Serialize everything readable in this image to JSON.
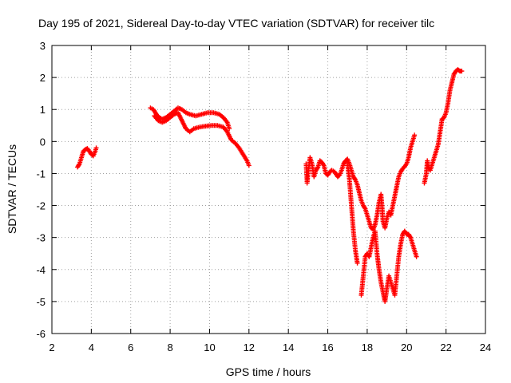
{
  "chart_data": {
    "type": "scatter",
    "title": "Day 195 of 2021, Sidereal Day-to-day VTEC variation (SDTVAR) for receiver tilc",
    "xlabel": "GPS time / hours",
    "ylabel": "SDTVAR / TECUs",
    "xlim": [
      2,
      24
    ],
    "ylim": [
      -6,
      3
    ],
    "xticks": [
      2,
      4,
      6,
      8,
      10,
      12,
      14,
      16,
      18,
      20,
      22,
      24
    ],
    "yticks": [
      -6,
      -5,
      -4,
      -3,
      -2,
      -1,
      0,
      1,
      2,
      3
    ],
    "grid": true,
    "marker": "+",
    "series": [
      {
        "name": "SDTVAR",
        "color": "#ff0000",
        "segments": [
          [
            [
              3.3,
              -0.8
            ],
            [
              3.4,
              -0.7
            ],
            [
              3.5,
              -0.5
            ],
            [
              3.6,
              -0.3
            ],
            [
              3.7,
              -0.25
            ],
            [
              3.8,
              -0.22
            ],
            [
              3.9,
              -0.3
            ],
            [
              4.0,
              -0.4
            ],
            [
              4.1,
              -0.45
            ],
            [
              4.2,
              -0.3
            ],
            [
              4.25,
              -0.2
            ]
          ],
          [
            [
              7.0,
              1.05
            ],
            [
              7.15,
              1.0
            ],
            [
              7.3,
              0.85
            ],
            [
              7.45,
              0.75
            ],
            [
              7.6,
              0.7
            ],
            [
              7.8,
              0.75
            ],
            [
              8.0,
              0.85
            ],
            [
              8.2,
              0.95
            ],
            [
              8.4,
              1.05
            ],
            [
              8.6,
              1.0
            ],
            [
              8.8,
              0.9
            ],
            [
              9.0,
              0.85
            ],
            [
              9.3,
              0.8
            ],
            [
              9.6,
              0.85
            ],
            [
              9.9,
              0.9
            ],
            [
              10.2,
              0.9
            ],
            [
              10.5,
              0.85
            ],
            [
              10.7,
              0.75
            ],
            [
              10.9,
              0.6
            ],
            [
              11.0,
              0.4
            ]
          ],
          [
            [
              7.2,
              0.8
            ],
            [
              7.4,
              0.65
            ],
            [
              7.6,
              0.6
            ],
            [
              7.8,
              0.65
            ],
            [
              8.0,
              0.75
            ],
            [
              8.2,
              0.85
            ],
            [
              8.4,
              0.9
            ],
            [
              8.6,
              0.65
            ],
            [
              8.8,
              0.4
            ],
            [
              9.0,
              0.3
            ],
            [
              9.2,
              0.4
            ],
            [
              9.5,
              0.45
            ],
            [
              9.8,
              0.48
            ],
            [
              10.1,
              0.5
            ],
            [
              10.4,
              0.5
            ],
            [
              10.7,
              0.45
            ],
            [
              10.9,
              0.3
            ],
            [
              11.1,
              0.05
            ],
            [
              11.3,
              -0.05
            ],
            [
              11.5,
              -0.2
            ],
            [
              11.7,
              -0.4
            ],
            [
              11.9,
              -0.6
            ],
            [
              12.0,
              -0.75
            ]
          ],
          [
            [
              14.9,
              -0.7
            ],
            [
              14.95,
              -1.3
            ],
            [
              15.0,
              -1.0
            ],
            [
              15.1,
              -0.5
            ],
            [
              15.2,
              -0.7
            ],
            [
              15.3,
              -1.1
            ],
            [
              15.4,
              -0.9
            ],
            [
              15.5,
              -0.8
            ],
            [
              15.6,
              -0.6
            ],
            [
              15.7,
              -0.65
            ],
            [
              15.8,
              -0.75
            ],
            [
              15.9,
              -1.0
            ],
            [
              16.0,
              -1.05
            ],
            [
              16.1,
              -0.95
            ],
            [
              16.2,
              -0.9
            ],
            [
              16.35,
              -0.95
            ],
            [
              16.5,
              -1.1
            ],
            [
              16.6,
              -1.05
            ],
            [
              16.7,
              -0.9
            ],
            [
              16.8,
              -0.7
            ],
            [
              16.9,
              -0.6
            ],
            [
              17.0,
              -0.55
            ],
            [
              17.1,
              -0.7
            ],
            [
              17.2,
              -0.9
            ],
            [
              17.3,
              -1.1
            ],
            [
              17.4,
              -1.2
            ],
            [
              17.5,
              -1.35
            ],
            [
              17.6,
              -1.6
            ],
            [
              17.7,
              -1.85
            ],
            [
              17.8,
              -2.0
            ],
            [
              17.9,
              -2.1
            ],
            [
              18.0,
              -2.3
            ],
            [
              18.1,
              -2.5
            ],
            [
              18.2,
              -2.7
            ],
            [
              18.3,
              -2.75
            ],
            [
              18.4,
              -2.6
            ],
            [
              18.5,
              -2.3
            ],
            [
              18.6,
              -1.9
            ],
            [
              18.7,
              -1.65
            ],
            [
              18.75,
              -2.0
            ],
            [
              18.8,
              -2.5
            ],
            [
              18.9,
              -2.7
            ],
            [
              19.0,
              -2.4
            ],
            [
              19.1,
              -2.2
            ],
            [
              19.2,
              -2.3
            ],
            [
              19.3,
              -2.0
            ],
            [
              19.4,
              -1.7
            ],
            [
              19.5,
              -1.4
            ],
            [
              19.6,
              -1.1
            ],
            [
              19.7,
              -0.95
            ],
            [
              19.8,
              -0.85
            ],
            [
              19.9,
              -0.78
            ],
            [
              20.0,
              -0.7
            ],
            [
              20.1,
              -0.5
            ],
            [
              20.2,
              -0.2
            ],
            [
              20.3,
              0.0
            ],
            [
              20.4,
              0.2
            ]
          ],
          [
            [
              17.0,
              -0.7
            ],
            [
              17.1,
              -1.2
            ],
            [
              17.2,
              -2.0
            ],
            [
              17.3,
              -2.8
            ],
            [
              17.4,
              -3.4
            ],
            [
              17.5,
              -3.8
            ]
          ],
          [
            [
              17.7,
              -4.8
            ],
            [
              17.8,
              -4.2
            ],
            [
              17.9,
              -3.6
            ],
            [
              18.0,
              -3.5
            ],
            [
              18.1,
              -3.6
            ],
            [
              18.2,
              -3.3
            ],
            [
              18.3,
              -3.0
            ],
            [
              18.4,
              -2.8
            ],
            [
              18.5,
              -3.5
            ],
            [
              18.6,
              -4.0
            ],
            [
              18.7,
              -4.4
            ],
            [
              18.8,
              -4.7
            ],
            [
              18.9,
              -5.0
            ],
            [
              19.0,
              -4.6
            ],
            [
              19.1,
              -4.2
            ],
            [
              19.2,
              -4.4
            ],
            [
              19.3,
              -4.6
            ],
            [
              19.4,
              -4.8
            ],
            [
              19.5,
              -4.2
            ],
            [
              19.6,
              -3.6
            ],
            [
              19.7,
              -3.2
            ],
            [
              19.8,
              -2.9
            ],
            [
              19.9,
              -2.8
            ],
            [
              20.0,
              -2.9
            ],
            [
              20.1,
              -2.9
            ],
            [
              20.2,
              -3.0
            ],
            [
              20.3,
              -3.2
            ],
            [
              20.4,
              -3.4
            ],
            [
              20.5,
              -3.6
            ]
          ],
          [
            [
              20.9,
              -1.3
            ],
            [
              21.0,
              -1.0
            ],
            [
              21.05,
              -0.6
            ],
            [
              21.1,
              -0.8
            ],
            [
              21.2,
              -0.9
            ],
            [
              21.3,
              -0.7
            ],
            [
              21.4,
              -0.5
            ],
            [
              21.5,
              -0.3
            ],
            [
              21.6,
              -0.1
            ],
            [
              21.7,
              0.3
            ],
            [
              21.8,
              0.7
            ],
            [
              21.9,
              0.75
            ],
            [
              22.0,
              0.9
            ],
            [
              22.1,
              1.2
            ],
            [
              22.2,
              1.6
            ],
            [
              22.3,
              1.85
            ],
            [
              22.4,
              2.1
            ],
            [
              22.5,
              2.2
            ],
            [
              22.6,
              2.25
            ],
            [
              22.7,
              2.2
            ],
            [
              22.8,
              2.2
            ]
          ]
        ]
      }
    ]
  }
}
